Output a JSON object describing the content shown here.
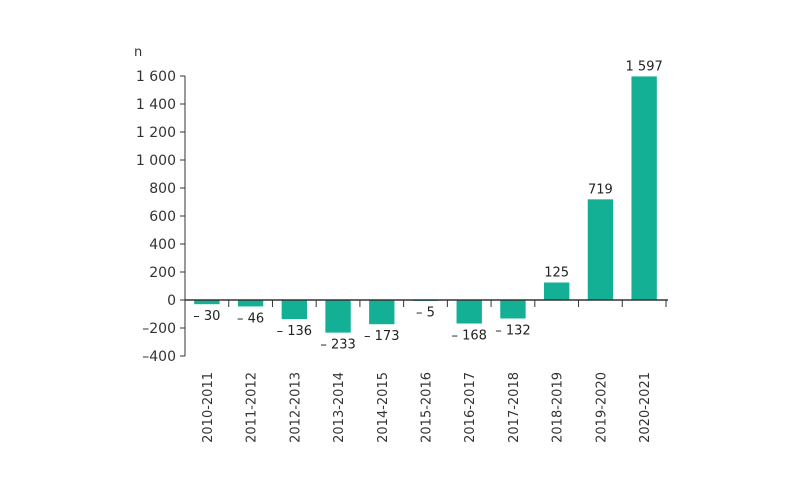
{
  "chart_data": {
    "type": "bar",
    "ylabel": "n",
    "ylim": [
      -400,
      1600
    ],
    "yticks": [
      {
        "value": 1600,
        "label": "1 600"
      },
      {
        "value": 1400,
        "label": "1 400"
      },
      {
        "value": 1200,
        "label": "1 200"
      },
      {
        "value": 1000,
        "label": "1 000"
      },
      {
        "value": 800,
        "label": "800"
      },
      {
        "value": 600,
        "label": "600"
      },
      {
        "value": 400,
        "label": "400"
      },
      {
        "value": 200,
        "label": "200"
      },
      {
        "value": 0,
        "label": "0"
      },
      {
        "value": -200,
        "label": "–200"
      },
      {
        "value": -400,
        "label": "–400"
      }
    ],
    "categories": [
      "2010-2011",
      "2011-2012",
      "2012-2013",
      "2013-2014",
      "2014-2015",
      "2015-2016",
      "2016-2017",
      "2017-2018",
      "2018-2019",
      "2019-2020",
      "2020-2021"
    ],
    "values": [
      -30,
      -46,
      -136,
      -233,
      -173,
      -5,
      -168,
      -132,
      125,
      719,
      1597
    ],
    "value_labels": [
      "– 30",
      "– 46",
      "– 136",
      "– 233",
      "– 173",
      "– 5",
      "– 168",
      "– 132",
      "125",
      "719",
      "1 597"
    ],
    "grid": false,
    "legend": "none",
    "colors": {
      "bar": "#13b096",
      "axis": "#333333"
    }
  }
}
